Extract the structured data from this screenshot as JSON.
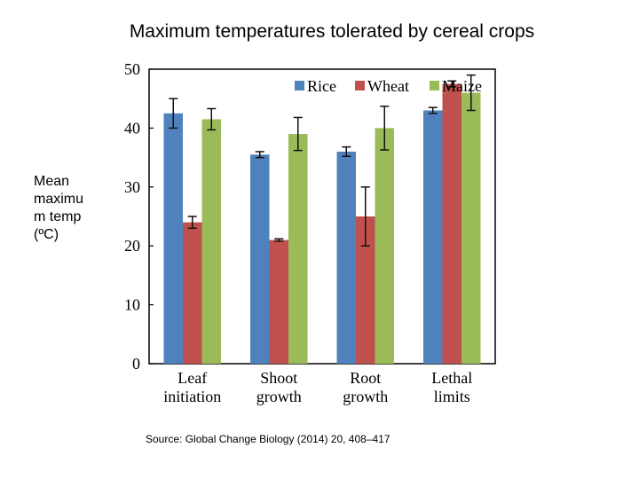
{
  "title": "Maximum temperatures tolerated by cereal crops",
  "ylabel_lines": [
    "Mean",
    "maximu",
    "m temp",
    "(ºC)"
  ],
  "source": "Source: Global Change Biology (2014) 20, 408–417",
  "chart_data": {
    "type": "bar",
    "categories": [
      [
        "Leaf",
        "initiation"
      ],
      [
        "Shoot",
        "growth"
      ],
      [
        "Root",
        "growth"
      ],
      [
        "Lethal",
        "limits"
      ]
    ],
    "series": [
      {
        "name": "Rice",
        "color": "#4f81bd",
        "values": [
          42.5,
          35.5,
          36,
          43
        ],
        "error": [
          2.5,
          0.5,
          0.8,
          0.5
        ]
      },
      {
        "name": "Wheat",
        "color": "#c0504d",
        "values": [
          24,
          21,
          25,
          47.5
        ],
        "error": [
          1,
          0.2,
          5,
          0.5
        ]
      },
      {
        "name": "Maize",
        "color": "#9bbb59",
        "values": [
          41.5,
          39,
          40,
          46
        ],
        "error": [
          1.8,
          2.8,
          3.7,
          3
        ]
      }
    ],
    "ylim": [
      0,
      50
    ],
    "yticks": [
      "0",
      "10",
      "20",
      "30",
      "40",
      "50"
    ],
    "legend": "top-right",
    "grid": false,
    "error_bars": true
  }
}
